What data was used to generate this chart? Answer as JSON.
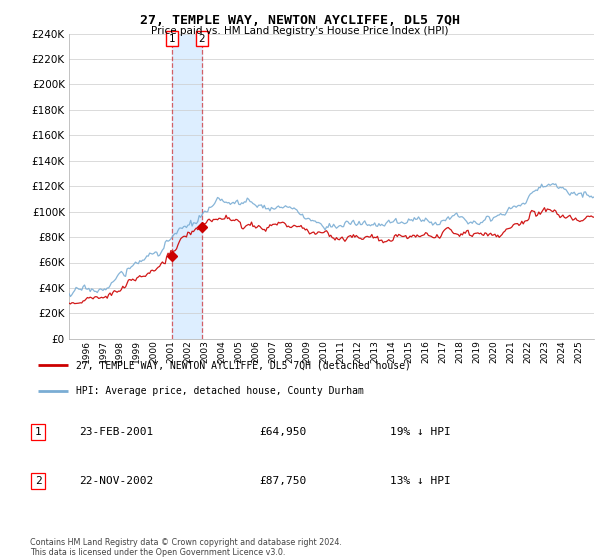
{
  "title": "27, TEMPLE WAY, NEWTON AYCLIFFE, DL5 7QH",
  "subtitle": "Price paid vs. HM Land Registry's House Price Index (HPI)",
  "legend_entry1": "27, TEMPLE WAY, NEWTON AYCLIFFE, DL5 7QH (detached house)",
  "legend_entry2": "HPI: Average price, detached house, County Durham",
  "transaction1_date": "23-FEB-2001",
  "transaction1_price": "£64,950",
  "transaction1_hpi": "19% ↓ HPI",
  "transaction2_date": "22-NOV-2002",
  "transaction2_price": "£87,750",
  "transaction2_hpi": "13% ↓ HPI",
  "footer": "Contains HM Land Registry data © Crown copyright and database right 2024.\nThis data is licensed under the Open Government Licence v3.0.",
  "hpi_color": "#7aadd4",
  "price_color": "#cc0000",
  "ylim": [
    0,
    240000
  ],
  "yticks": [
    0,
    20000,
    40000,
    60000,
    80000,
    100000,
    120000,
    140000,
    160000,
    180000,
    200000,
    220000,
    240000
  ],
  "background_color": "#ffffff",
  "grid_color": "#cccccc",
  "shade_color": "#ddeeff",
  "start_year": 1995,
  "end_year": 2025,
  "t1_year": 2001,
  "t1_month": 1,
  "t1_price": 64950,
  "t2_year": 2002,
  "t2_month": 10,
  "t2_price": 87750,
  "seed": 17
}
